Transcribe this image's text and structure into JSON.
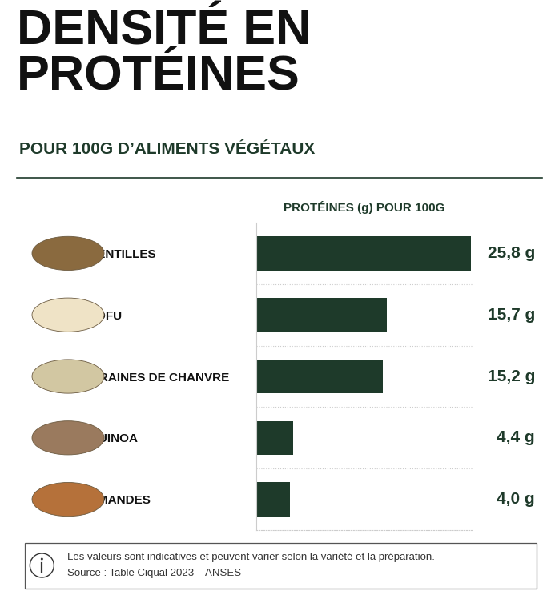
{
  "chart_data": {
    "type": "bar",
    "orientation": "horizontal",
    "title": "DENSITÉ EN PROTÉINES",
    "subtitle": "POUR 100G D’ALIMENTS VÉGÉTAUX",
    "x_label": "PROTÉINES (g) POUR 100G",
    "categories": [
      "LENTILLES",
      "TOFU",
      "GRAINES DE CHANVRE",
      "QUINOA",
      "AMANDES"
    ],
    "values": [
      25.8,
      15.7,
      15.2,
      4.4,
      4.0
    ],
    "value_labels": [
      "25,8 g",
      "15,7 g",
      "15,2 g",
      "4,4 g",
      "4,0 g"
    ],
    "data_labels": true,
    "color": "#1e3a2a",
    "xlim": [
      0,
      26
    ],
    "tick_labels": "y",
    "grid": false,
    "annotations": [
      "Les valeurs sont indicatives et peuvent varier selon la variété et la préparation.",
      "Source : Table Ciqual 2023 – ANSES"
    ]
  }
}
